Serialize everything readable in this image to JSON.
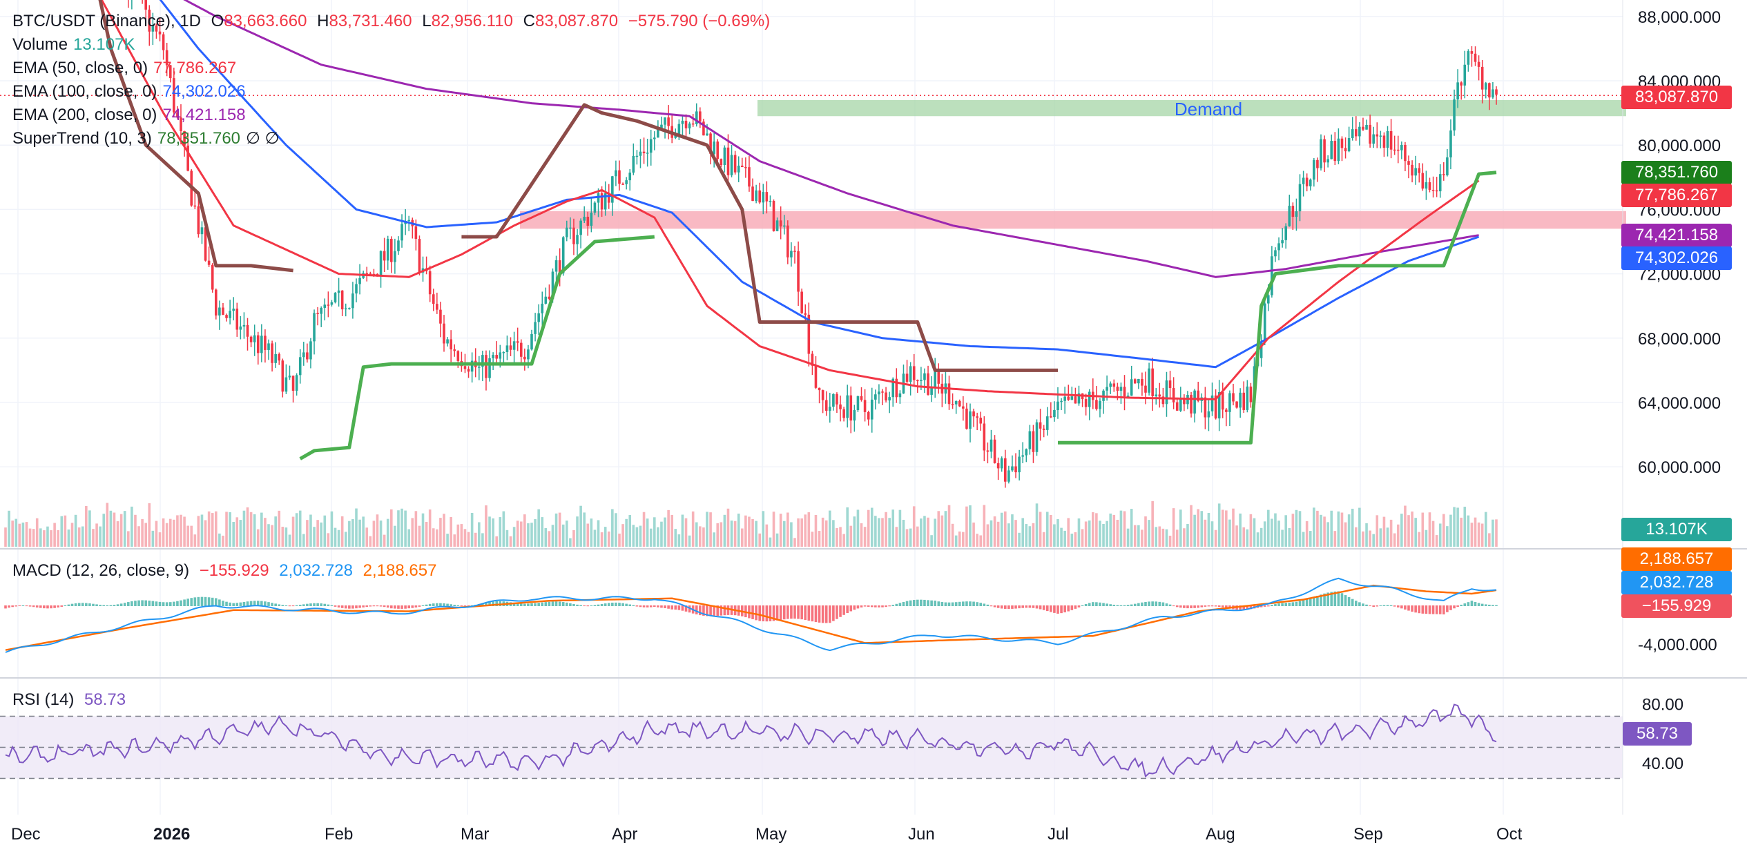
{
  "header": {
    "symbol": "BTC/USDT (Binance), 1D",
    "open_label": "O",
    "open": "83,663.660",
    "high_label": "H",
    "high": "83,731.460",
    "low_label": "L",
    "low": "82,956.110",
    "close_label": "C",
    "close": "83,087.870",
    "change": "−575.790 (−0.69%)"
  },
  "indicators": [
    {
      "label": "Volume",
      "value": "13.107K",
      "color": "#26a69a"
    },
    {
      "label": "EMA (50, close, 0)",
      "value": "77,786.267",
      "color": "#f23645"
    },
    {
      "label": "EMA (100, close, 0)",
      "value": "74,302.026",
      "color": "#2962ff"
    },
    {
      "label": "EMA (200, close, 0)",
      "value": "74,421.158",
      "color": "#9c27b0"
    },
    {
      "label": "SuperTrend (10, 3)",
      "value": "78,351.760",
      "color": "#2e7d32",
      "extra": "∅ ∅"
    }
  ],
  "macd_legend": {
    "label": "MACD (12, 26, close, 9)",
    "hist": "−155.929",
    "macd": "2,032.728",
    "signal": "2,188.657"
  },
  "rsi_legend": {
    "label": "RSI (14)",
    "value": "58.73"
  },
  "zones": {
    "demand_label": "Demand"
  },
  "price_tags": {
    "last": "83,087.870",
    "supertrend": "78,351.760",
    "ema50": "77,786.267",
    "ema200": "74,421.158",
    "ema100": "74,302.026",
    "volume": "13.107K",
    "macd_signal": "2,188.657",
    "macd": "2,032.728",
    "macd_hist": "−155.929",
    "rsi": "58.73"
  },
  "colors": {
    "up": "#26a69a",
    "down": "#f23645",
    "ema50": "#f23645",
    "ema100": "#2962ff",
    "ema200": "#9c27b0",
    "st_up": "#2e7d32",
    "st_down": "#8d4b48",
    "demand": "#a5d6a7",
    "supply": "#f7a8b4",
    "rsi": "#7e57c2",
    "macd": "#2196f3",
    "signal": "#ff6d00"
  },
  "chart_data": {
    "type": "candlestick",
    "title": "BTC/USDT (Binance), 1D",
    "x_ticks": [
      "Dec",
      "2026",
      "Feb",
      "Mar",
      "Apr",
      "May",
      "Jun",
      "Jul",
      "Aug",
      "Sep",
      "Oct"
    ],
    "y_ticks": [
      "88,000.000",
      "84,000.000",
      "80,000.000",
      "76,000.000",
      "72,000.000",
      "68,000.000",
      "64,000.000",
      "60,000.000"
    ],
    "ylim": [
      57000,
      89000
    ],
    "macd_ticks": [
      "-4,000.000"
    ],
    "rsi_ticks": [
      "80.00",
      "40.00"
    ],
    "rsi_bands": [
      70,
      50,
      30
    ],
    "zones": [
      {
        "name": "Demand",
        "from": "May",
        "low": 81800,
        "high": 82800
      },
      {
        "name": "",
        "from": "Mar",
        "low": 74800,
        "high": 75900
      }
    ],
    "ema50_keypoints": [
      [
        0,
        94000
      ],
      [
        25,
        90000
      ],
      [
        45,
        82000
      ],
      [
        65,
        75000
      ],
      [
        80,
        73500
      ],
      [
        95,
        72000
      ],
      [
        115,
        71800
      ],
      [
        130,
        73200
      ],
      [
        145,
        75000
      ],
      [
        160,
        76500
      ],
      [
        170,
        77200
      ],
      [
        185,
        75500
      ],
      [
        200,
        70000
      ],
      [
        215,
        67500
      ],
      [
        235,
        66000
      ],
      [
        260,
        65000
      ],
      [
        280,
        64700
      ],
      [
        300,
        64500
      ],
      [
        320,
        64300
      ],
      [
        345,
        64200
      ],
      [
        360,
        68000
      ],
      [
        380,
        71500
      ],
      [
        405,
        75500
      ],
      [
        420,
        77800
      ]
    ],
    "ema100_keypoints": [
      [
        0,
        99000
      ],
      [
        30,
        93000
      ],
      [
        55,
        86000
      ],
      [
        80,
        80000
      ],
      [
        100,
        76000
      ],
      [
        120,
        74900
      ],
      [
        140,
        75200
      ],
      [
        160,
        76600
      ],
      [
        175,
        76900
      ],
      [
        190,
        75800
      ],
      [
        210,
        71500
      ],
      [
        230,
        69000
      ],
      [
        250,
        68000
      ],
      [
        275,
        67500
      ],
      [
        300,
        67300
      ],
      [
        325,
        66700
      ],
      [
        345,
        66200
      ],
      [
        360,
        68000
      ],
      [
        380,
        70500
      ],
      [
        400,
        72800
      ],
      [
        420,
        74300
      ]
    ],
    "ema200_keypoints": [
      [
        0,
        95000
      ],
      [
        30,
        91500
      ],
      [
        60,
        88000
      ],
      [
        90,
        85000
      ],
      [
        120,
        83500
      ],
      [
        150,
        82600
      ],
      [
        175,
        82200
      ],
      [
        195,
        81800
      ],
      [
        215,
        79000
      ],
      [
        240,
        77000
      ],
      [
        270,
        75000
      ],
      [
        300,
        73800
      ],
      [
        325,
        72800
      ],
      [
        345,
        71800
      ],
      [
        365,
        72300
      ],
      [
        390,
        73300
      ],
      [
        420,
        74400
      ]
    ],
    "supertrend_segments": [
      {
        "dir": "down",
        "points": [
          [
            25,
            91000
          ],
          [
            30,
            86000
          ],
          [
            40,
            80000
          ],
          [
            55,
            77000
          ],
          [
            60,
            72500
          ],
          [
            70,
            72500
          ],
          [
            82,
            72200
          ]
        ]
      },
      {
        "dir": "up",
        "points": [
          [
            84,
            60500
          ],
          [
            88,
            61000
          ],
          [
            98,
            61200
          ],
          [
            102,
            66200
          ],
          [
            110,
            66400
          ],
          [
            150,
            66400
          ],
          [
            158,
            72000
          ],
          [
            168,
            74000
          ],
          [
            185,
            74300
          ]
        ]
      },
      {
        "dir": "down",
        "points": [
          [
            130,
            74300
          ],
          [
            140,
            74300
          ],
          [
            165,
            82500
          ],
          [
            170,
            82000
          ],
          [
            180,
            81500
          ],
          [
            200,
            80000
          ],
          [
            210,
            76000
          ],
          [
            215,
            69000
          ],
          [
            260,
            69000
          ],
          [
            265,
            66000
          ],
          [
            300,
            66000
          ]
        ]
      },
      {
        "dir": "up",
        "points": [
          [
            300,
            61500
          ],
          [
            310,
            61500
          ],
          [
            355,
            61500
          ],
          [
            358,
            70000
          ],
          [
            362,
            72000
          ],
          [
            380,
            72500
          ],
          [
            410,
            72500
          ],
          [
            420,
            78200
          ],
          [
            425,
            78300
          ]
        ]
      }
    ]
  }
}
